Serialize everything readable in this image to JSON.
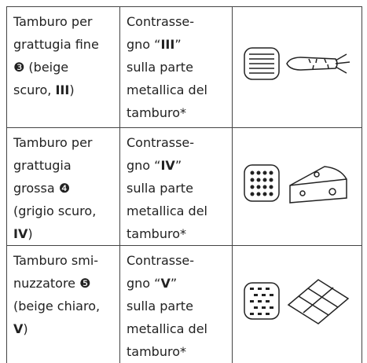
{
  "table": {
    "rows": [
      {
        "drum": [
          [
            "Tamburo per"
          ],
          [
            "grattugia fine"
          ],
          [
            "❸",
            " (beige"
          ],
          [
            "scuro, ",
            "III",
            ")"
          ]
        ],
        "marking": [
          [
            "Contrasse-"
          ],
          [
            "gno “",
            "III",
            "”"
          ],
          [
            "sulla parte"
          ],
          [
            "metallica del"
          ],
          [
            "tamburo*"
          ]
        ]
      },
      {
        "drum": [
          [
            "Tamburo per"
          ],
          [
            "grattugia"
          ],
          [
            "grossa ",
            "❹"
          ],
          [
            "(grigio scuro,"
          ],
          [
            "IV",
            ")"
          ]
        ],
        "marking": [
          [
            "Contrasse-"
          ],
          [
            "gno “",
            "IV",
            "”"
          ],
          [
            "sulla parte"
          ],
          [
            "metallica del"
          ],
          [
            "tamburo*"
          ]
        ]
      },
      {
        "drum": [
          [
            "Tamburo smi-"
          ],
          [
            "nuzzatore ",
            "❺"
          ],
          [
            "(beige chiaro,"
          ],
          [
            "V",
            ")"
          ]
        ],
        "marking": [
          [
            "Contrasse-"
          ],
          [
            "gno “",
            "V",
            "”"
          ],
          [
            "sulla parte"
          ],
          [
            "metallica del"
          ],
          [
            "tamburo*"
          ]
        ]
      }
    ]
  }
}
